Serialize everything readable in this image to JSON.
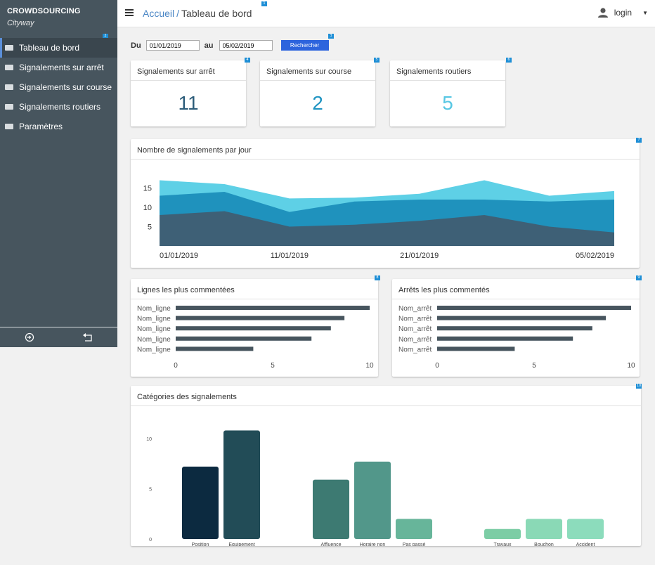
{
  "brand": {
    "name": "CROWDSOURCING",
    "subtitle": "Cityway"
  },
  "sidebar": {
    "items": [
      {
        "label": "Tableau de bord",
        "name": "sidebar-item-tableau-de-bord",
        "active": true
      },
      {
        "label": "Signalements sur arrêt",
        "name": "sidebar-item-signalements-sur-arret",
        "active": false
      },
      {
        "label": "Signalements sur course",
        "name": "sidebar-item-signalements-sur-course",
        "active": false
      },
      {
        "label": "Signalements routiers",
        "name": "sidebar-item-signalements-routiers",
        "active": false
      },
      {
        "label": "Paramètres",
        "name": "sidebar-item-parametres",
        "active": false
      }
    ],
    "bottom_icons": [
      "logout-icon",
      "back-icon"
    ]
  },
  "header": {
    "breadcrumb_link": "Accueil",
    "breadcrumb_sep": "/",
    "title": "Tableau de bord",
    "user": "login"
  },
  "badges": {
    "b1": "1",
    "b2": "2",
    "b3": "3",
    "b4": "4",
    "b5": "5",
    "b6": "6",
    "b7": "7",
    "b8": "8",
    "b9": "9",
    "b10": "10"
  },
  "filter": {
    "from_label": "Du",
    "from_value": "01/01/2019",
    "to_label": "au",
    "to_value": "05/02/2019",
    "search_label": "Rechercher"
  },
  "stats": [
    {
      "title": "Signalements sur arrêt",
      "value": "11",
      "color": "#2d5d7a"
    },
    {
      "title": "Signalements sur course",
      "value": "2",
      "color": "#1f94c2"
    },
    {
      "title": "Signalements routiers",
      "value": "5",
      "color": "#57c7e3"
    }
  ],
  "colors": {
    "accent": "#2d64dd",
    "sidebar": "#47555e",
    "link": "#4a86c5"
  },
  "chart_data": [
    {
      "type": "area",
      "title": "Nombre de signalements par jour",
      "x": [
        "01/01/2019",
        "06/01/2019",
        "11/01/2019",
        "16/01/2019",
        "21/01/2019",
        "26/01/2019",
        "31/01/2019",
        "05/02/2019"
      ],
      "x_ticks": [
        "01/01/2019",
        "11/01/2019",
        "21/01/2019",
        "05/02/2019"
      ],
      "y_ticks": [
        5,
        10,
        15
      ],
      "ylim": [
        0,
        18
      ],
      "stacked": true,
      "colors": [
        "#3e6076",
        "#1f92bd",
        "#5ed0e6"
      ],
      "series": [
        {
          "values": [
            8,
            9,
            5,
            5.5,
            6.5,
            8,
            5,
            3.5
          ]
        },
        {
          "values": [
            5,
            5,
            3.8,
            6,
            5.5,
            4,
            6.5,
            8.5
          ]
        },
        {
          "values": [
            4,
            2,
            3.5,
            1,
            1.5,
            5,
            1.5,
            2.2
          ]
        }
      ]
    },
    {
      "type": "bar",
      "orientation": "horizontal",
      "title": "Lignes les plus commentées",
      "categories": [
        "Nom_ligne",
        "Nom_ligne",
        "Nom_ligne",
        "Nom_ligne",
        "Nom_ligne"
      ],
      "values": [
        10,
        8.7,
        8,
        7,
        4
      ],
      "x_ticks": [
        0,
        5,
        10
      ],
      "xlim": [
        0,
        10
      ],
      "color": "#47555e"
    },
    {
      "type": "bar",
      "orientation": "horizontal",
      "title": "Arrêts les plus commentés",
      "categories": [
        "Nom_arrêt",
        "Nom_arrêt",
        "Nom_arrêt",
        "Nom_arrêt",
        "Nom_arrêt"
      ],
      "values": [
        10,
        8.7,
        8,
        7,
        4
      ],
      "x_ticks": [
        0,
        5,
        10
      ],
      "xlim": [
        0,
        10
      ],
      "color": "#47555e"
    },
    {
      "type": "bar",
      "title": "Catégories des signalements",
      "y_ticks": [
        0,
        5,
        10
      ],
      "ylim": [
        0,
        10.5
      ],
      "groups": [
        {
          "categories": [
            "Position",
            "Equipement"
          ],
          "values": [
            7.2,
            10.8
          ],
          "colors": [
            "#0c2a40",
            "#224c57"
          ]
        },
        {
          "categories": [
            "Affluence",
            "Horaire non respecté",
            "Pas passé"
          ],
          "values": [
            5.9,
            7.7,
            2
          ],
          "colors": [
            "#3d7a72",
            "#52978a",
            "#67b59a"
          ]
        },
        {
          "categories": [
            "Travaux",
            "Bouchon",
            "Accident"
          ],
          "values": [
            1,
            2,
            2
          ],
          "colors": [
            "#7ccda5",
            "#8ad9b6",
            "#8cdcbc"
          ]
        }
      ]
    }
  ]
}
